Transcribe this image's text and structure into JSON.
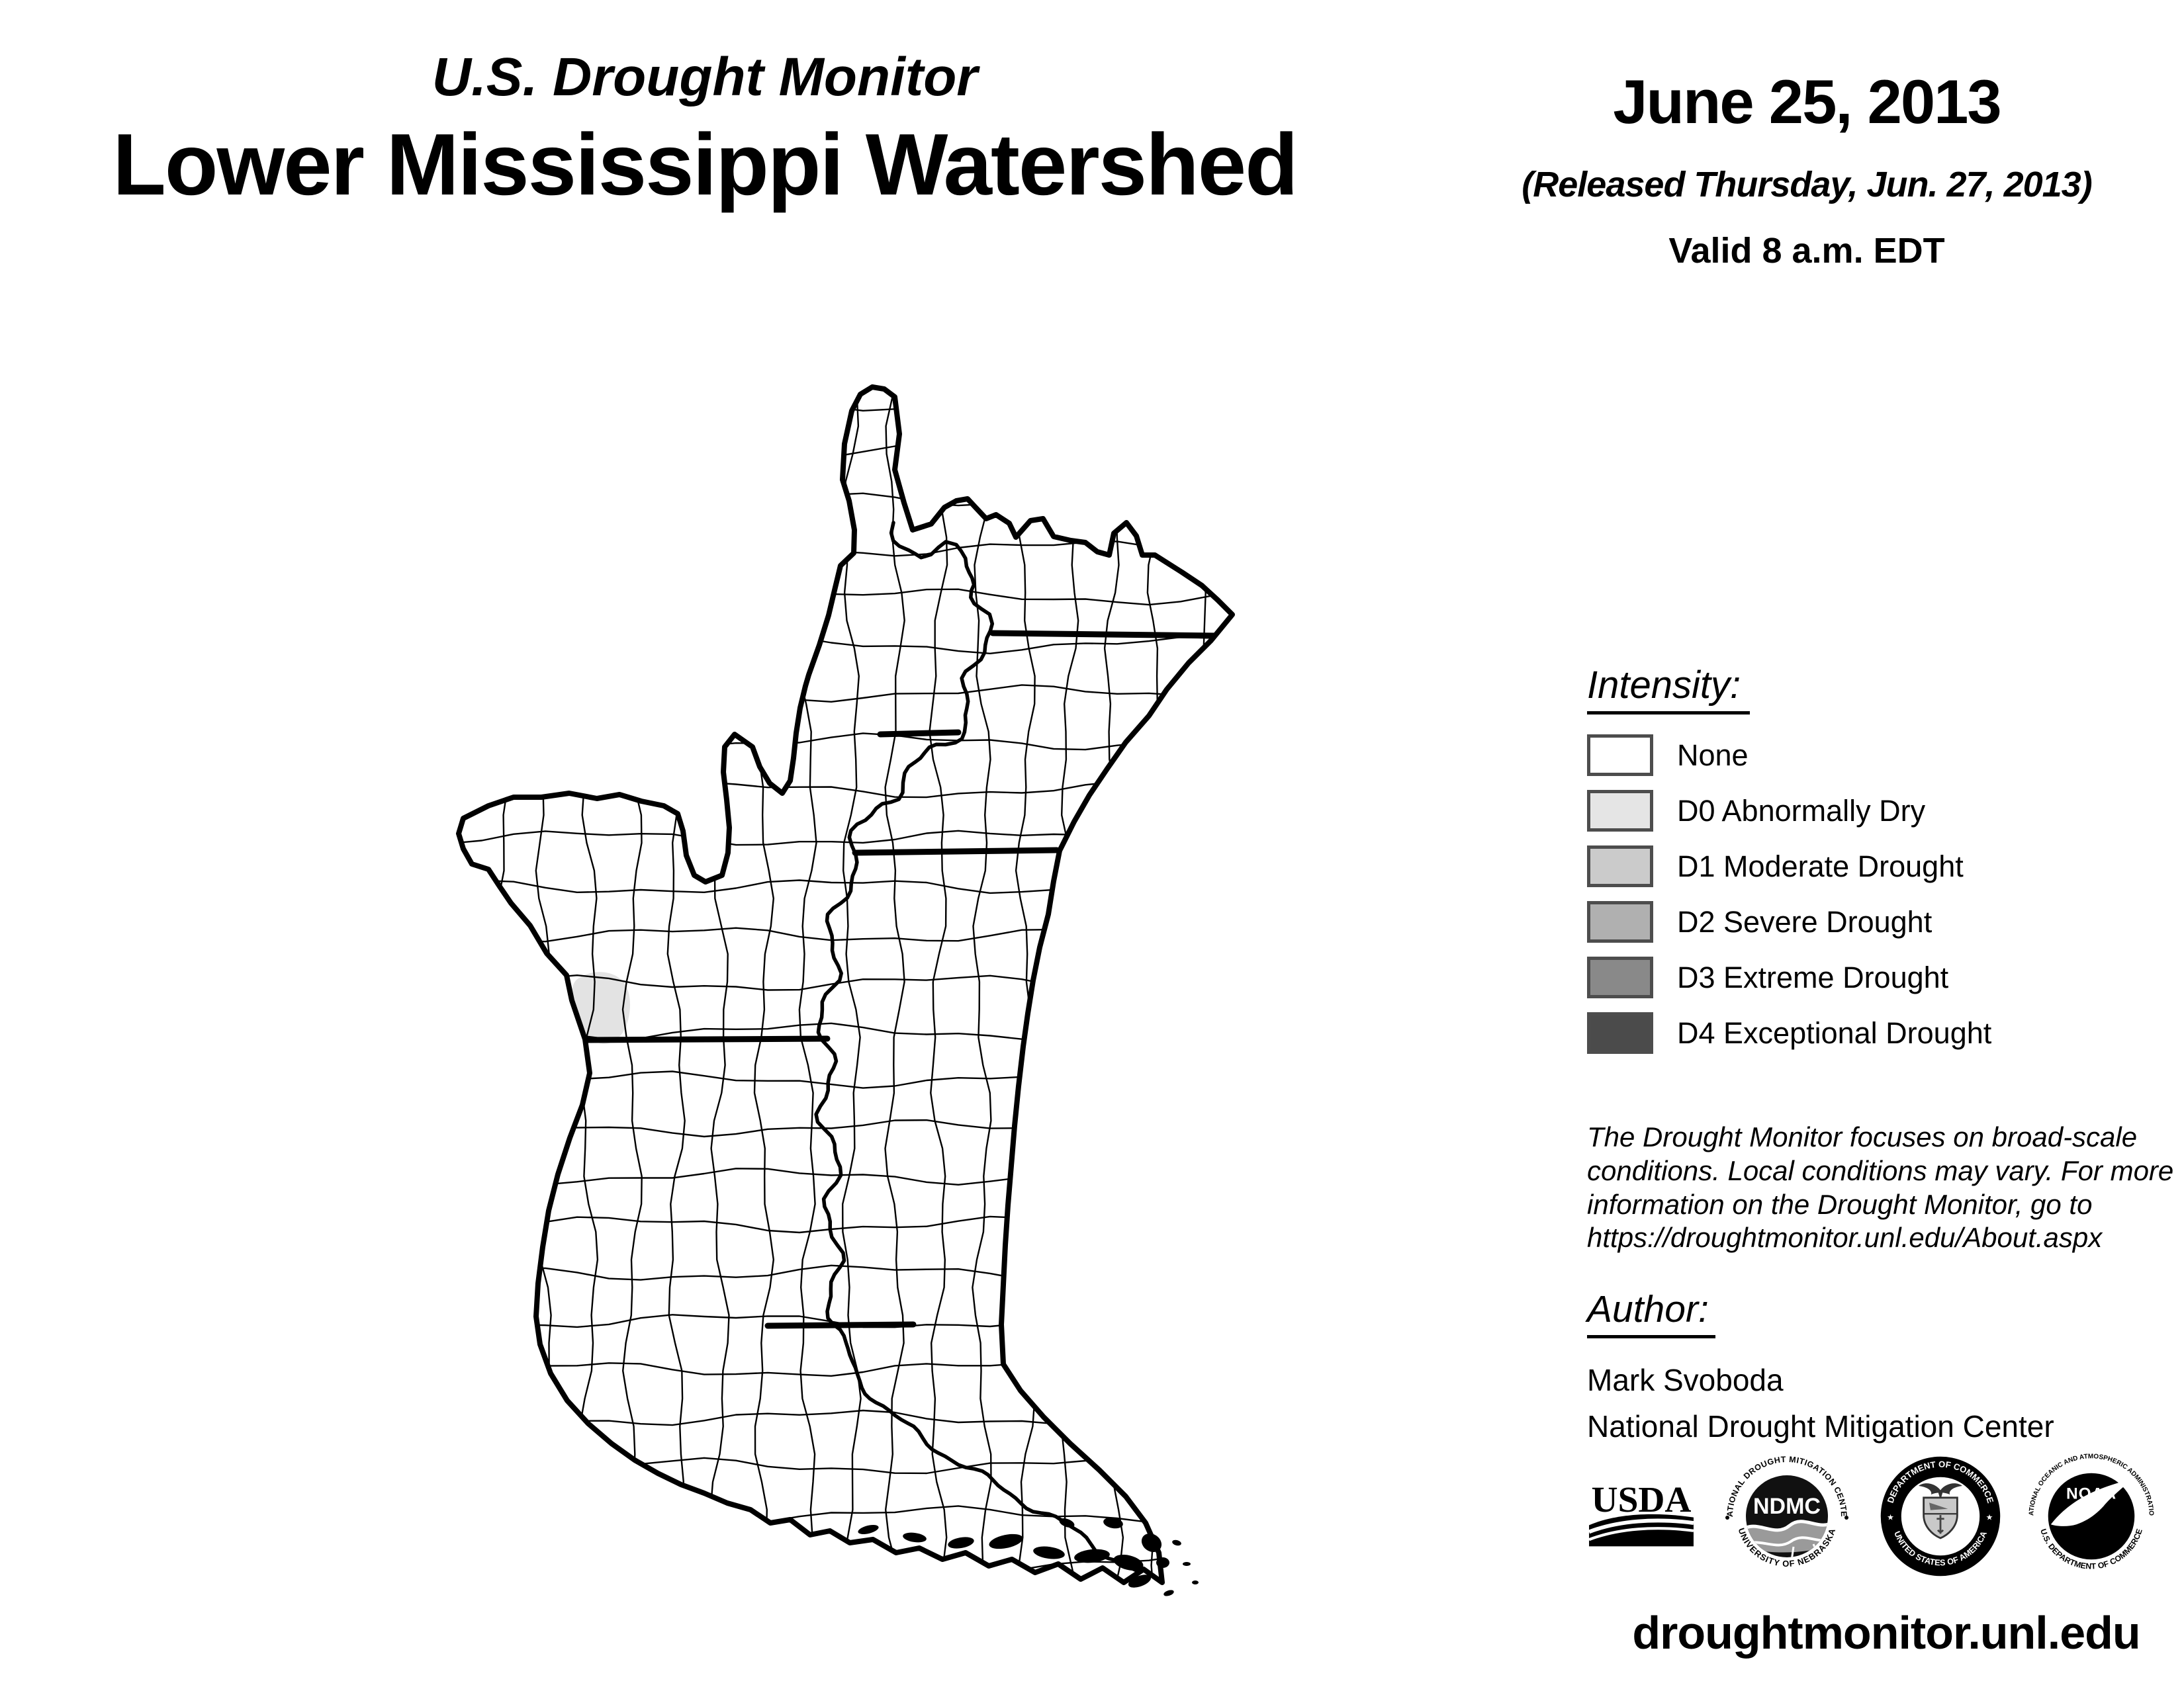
{
  "header": {
    "title_small": "U.S. Drought Monitor",
    "title_large": "Lower Mississippi Watershed",
    "date": "June 25, 2013",
    "released": "(Released Thursday, Jun. 27, 2013)",
    "valid": "Valid 8 a.m. EDT"
  },
  "legend": {
    "title": "Intensity:",
    "items": [
      {
        "label": "None",
        "color": "#ffffff"
      },
      {
        "label": "D0 Abnormally Dry",
        "color": "#e5e5e5"
      },
      {
        "label": "D1 Moderate Drought",
        "color": "#cbcbcb"
      },
      {
        "label": "D2 Severe Drought",
        "color": "#b0b0b0"
      },
      {
        "label": "D3 Extreme Drought",
        "color": "#898989"
      },
      {
        "label": "D4 Exceptional Drought",
        "color": "#4b4b4b"
      }
    ],
    "swatch_border_color": "#4d4d4d"
  },
  "disclaimer": {
    "text": "The Drought Monitor focuses on broad-scale\nconditions. Local conditions may vary. For more\ninformation on the Drought Monitor, go to\nhttps://droughtmonitor.unl.edu/About.aspx"
  },
  "author": {
    "title": "Author:",
    "name": "Mark Svoboda",
    "org": "National Drought Mitigation Center"
  },
  "logos": {
    "usda": {
      "text": "USDA"
    },
    "ndmc": {
      "center": "NDMC",
      "top": "NATIONAL DROUGHT MITIGATION CENTER",
      "bottom": "UNIVERSITY OF NEBRASKA"
    },
    "doc": {
      "top": "DEPARTMENT OF COMMERCE",
      "bottom": "UNITED STATES OF AMERICA"
    },
    "noaa": {
      "center": "NOAA",
      "top": "NATIONAL OCEANIC AND ATMOSPHERIC ADMINISTRATION",
      "bottom": "U.S. DEPARTMENT OF COMMERCE"
    }
  },
  "footer": {
    "url": "droughtmonitor.unl.edu"
  },
  "map": {
    "boundary_color": "#000000",
    "d0_patch_color": "#e3e3e3"
  }
}
